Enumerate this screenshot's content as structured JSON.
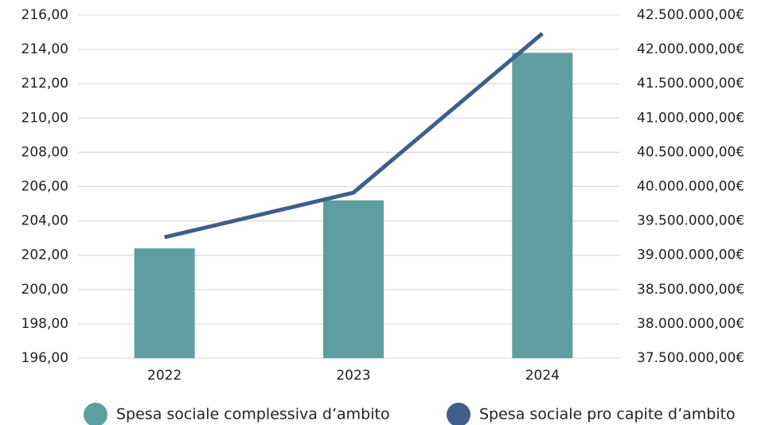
{
  "chart_data": {
    "type": "bar_line",
    "categories": [
      "2022",
      "2023",
      "2024"
    ],
    "series": [
      {
        "name": "Spesa sociale complessiva d’ambito",
        "color": "#5f9ea0",
        "type": "bar",
        "axis": "y2",
        "values": [
          39100000,
          39800000,
          41950000
        ]
      },
      {
        "name": "Spesa sociale pro capite d’ambito",
        "color": "#3f5e8c",
        "type": "line",
        "axis": "y",
        "values": [
          203.05,
          205.65,
          214.93
        ]
      }
    ],
    "ylim": [
      196,
      216
    ],
    "yticks": [
      {
        "value": 196,
        "label": "196,00"
      },
      {
        "value": 198,
        "label": "198,00"
      },
      {
        "value": 200,
        "label": "200,00"
      },
      {
        "value": 202,
        "label": "202,00"
      },
      {
        "value": 204,
        "label": "204,00"
      },
      {
        "value": 206,
        "label": "206,00"
      },
      {
        "value": 208,
        "label": "208,00"
      },
      {
        "value": 210,
        "label": "210,00"
      },
      {
        "value": 212,
        "label": "212,00"
      },
      {
        "value": 214,
        "label": "214,00"
      },
      {
        "value": 216,
        "label": "216,00"
      }
    ],
    "y2lim": [
      37500000,
      42500000
    ],
    "y2ticks": [
      {
        "value": 37500000,
        "label": "37.500.000,00€"
      },
      {
        "value": 38000000,
        "label": "38.000.000,00€"
      },
      {
        "value": 38500000,
        "label": "38.500.000,00€"
      },
      {
        "value": 39000000,
        "label": "39.000.000,00€"
      },
      {
        "value": 39500000,
        "label": "39.500.000,00€"
      },
      {
        "value": 40000000,
        "label": "40.000.000,00€"
      },
      {
        "value": 40500000,
        "label": "40.500.000,00€"
      },
      {
        "value": 41000000,
        "label": "41.000.000,00€"
      },
      {
        "value": 41500000,
        "label": "41.500.000,00€"
      },
      {
        "value": 42000000,
        "label": "42.000.000,00€"
      },
      {
        "value": 42500000,
        "label": "42.500.000,00€"
      }
    ],
    "grid": true,
    "legend": "bottom"
  }
}
